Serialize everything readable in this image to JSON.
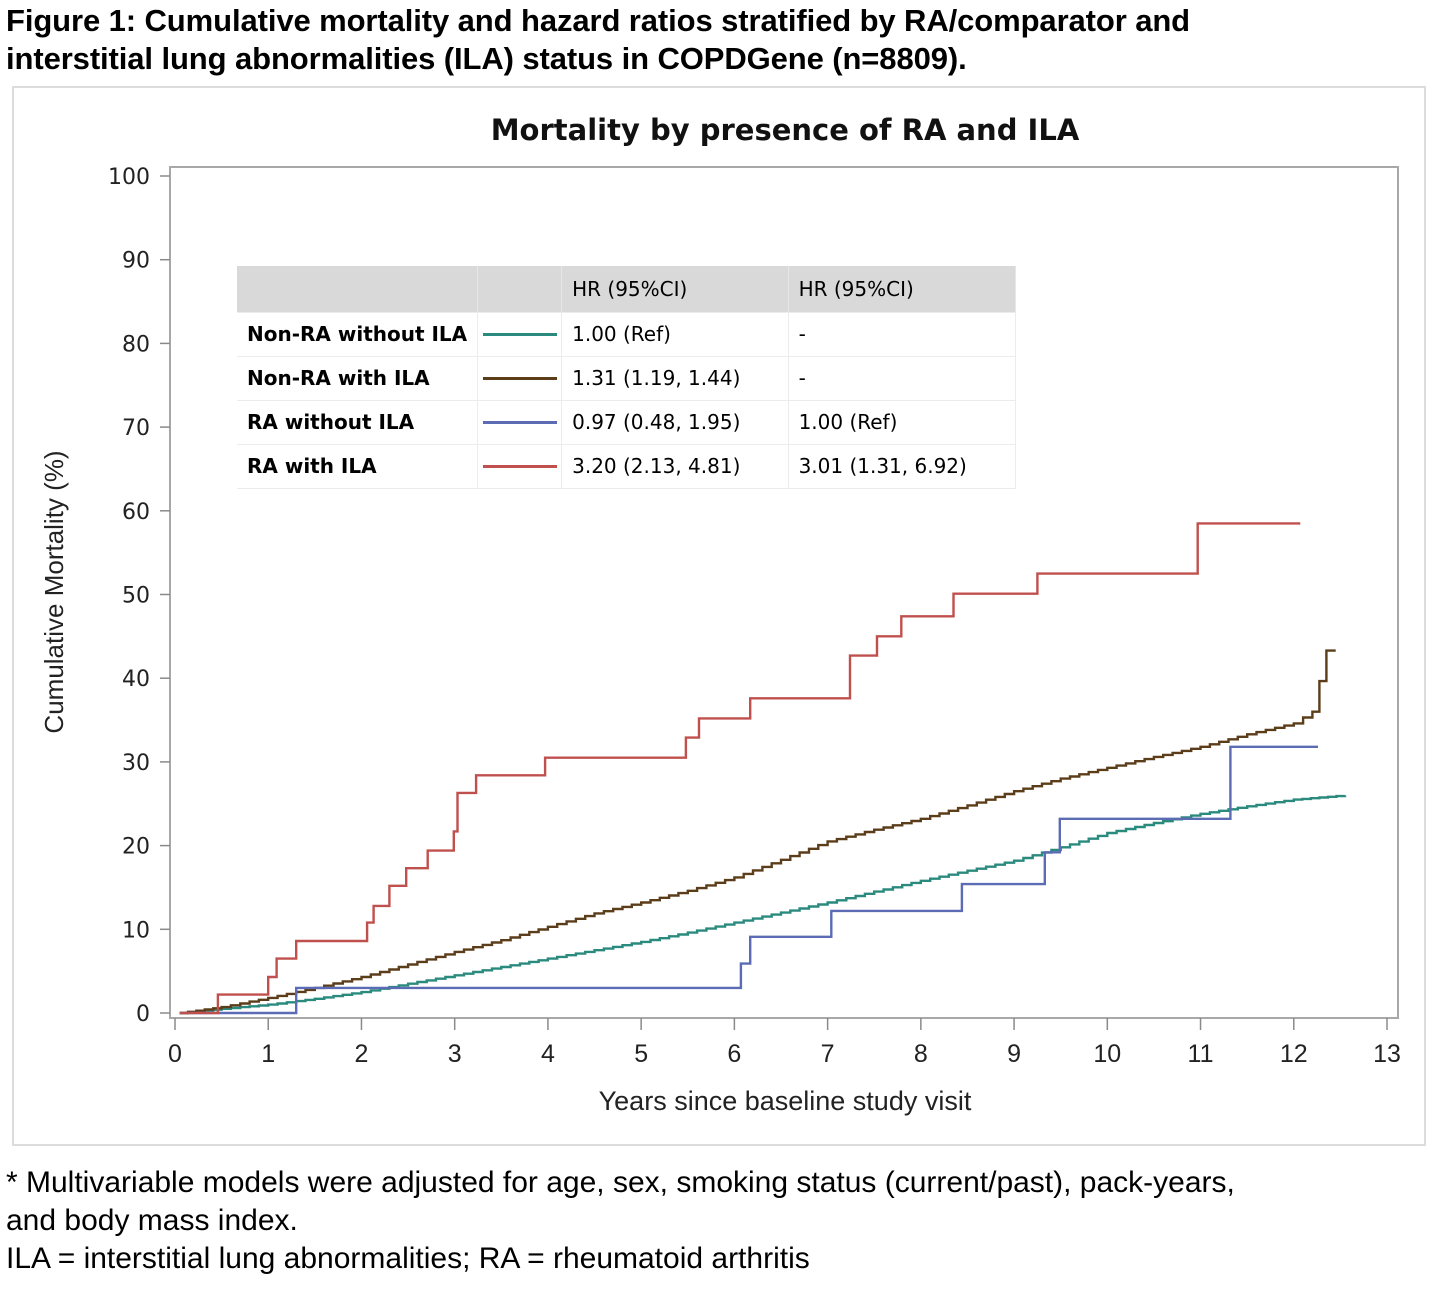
{
  "figure": {
    "title_line1": "Figure 1: Cumulative mortality and hazard ratios stratified by RA/comparator and",
    "title_line2": "interstitial lung abnormalities (ILA) status in COPDGene (n=8809)."
  },
  "footnote": {
    "line1": "* Multivariable models were adjusted for age, sex, smoking status (current/past), pack-years,",
    "line2": "and body mass index.",
    "line3": "ILA = interstitial lung abnormalities; RA = rheumatoid arthritis"
  },
  "legend_table": {
    "header": [
      "",
      "",
      "HR (95%CI)",
      "HR (95%CI)"
    ],
    "rows": [
      {
        "label": "Non-RA without ILA",
        "color": "#2a8a7e",
        "hr1": "1.00 (Ref)",
        "hr2": "-"
      },
      {
        "label": "Non-RA with ILA",
        "color": "#5c3d1a",
        "hr1": "1.31 (1.19, 1.44)",
        "hr2": "-"
      },
      {
        "label": "RA without ILA",
        "color": "#5b6cb4",
        "hr1": "0.97 (0.48, 1.95)",
        "hr2": "1.00 (Ref)"
      },
      {
        "label": "RA with ILA",
        "color": "#c0504d",
        "hr1": "3.20 (2.13, 4.81)",
        "hr2": "3.01 (1.31, 6.92)"
      }
    ]
  },
  "chart_data": {
    "type": "line",
    "step": true,
    "title": "Mortality by presence of RA and ILA",
    "xlabel": "Years since baseline study visit",
    "ylabel": "Cumulative Mortality (%)",
    "xlim": [
      0,
      13
    ],
    "ylim": [
      0,
      100
    ],
    "xticks": [
      0,
      1,
      2,
      3,
      4,
      5,
      6,
      7,
      8,
      9,
      10,
      11,
      12,
      13
    ],
    "yticks": [
      0,
      10,
      20,
      30,
      40,
      50,
      60,
      70,
      80,
      90,
      100
    ],
    "grid": false,
    "legend_placement": "top-left (inset table)",
    "series": [
      {
        "name": "Non-RA without ILA",
        "color": "#2a8a7e",
        "x": [
          0.05,
          0.5,
          1,
          1.5,
          2,
          2.5,
          3,
          3.5,
          4,
          4.5,
          5,
          5.5,
          6,
          6.5,
          7,
          7.5,
          8,
          8.5,
          9,
          9.5,
          10,
          10.5,
          11,
          11.5,
          12,
          12.55
        ],
        "y": [
          0,
          0.5,
          1.0,
          1.7,
          2.5,
          3.5,
          4.5,
          5.5,
          6.5,
          7.5,
          8.5,
          9.6,
          10.8,
          12.0,
          13.2,
          14.5,
          15.8,
          17.0,
          18.2,
          19.8,
          21.5,
          22.7,
          23.8,
          24.7,
          25.5,
          26.0
        ]
      },
      {
        "name": "Non-RA with ILA",
        "color": "#5c3d1a",
        "x": [
          0.05,
          0.5,
          1,
          1.5,
          2,
          2.5,
          3,
          3.5,
          4,
          4.5,
          5,
          5.5,
          6,
          6.5,
          7,
          7.5,
          8,
          8.5,
          9,
          9.5,
          10,
          10.5,
          11,
          11.5,
          12,
          12.2,
          12.35,
          12.45
        ],
        "y": [
          0,
          0.7,
          1.8,
          3.0,
          4.3,
          5.8,
          7.3,
          8.7,
          10.3,
          11.9,
          13.2,
          14.6,
          16.2,
          18.3,
          20.5,
          21.9,
          23.2,
          24.8,
          26.5,
          28.0,
          29.3,
          30.6,
          31.8,
          33.3,
          34.6,
          36.0,
          43.3,
          43.3
        ]
      },
      {
        "name": "RA without ILA",
        "color": "#5b6cb4",
        "x": [
          0.05,
          1.3,
          6.07,
          6.17,
          7.04,
          8.44,
          9.33,
          9.49,
          11.32,
          12.26
        ],
        "y": [
          0,
          3.0,
          5.9,
          9.1,
          12.2,
          15.4,
          19.2,
          23.2,
          31.8,
          31.8
        ]
      },
      {
        "name": "RA with ILA",
        "color": "#c0504d",
        "x": [
          0.05,
          0.46,
          1.0,
          1.09,
          1.3,
          2.06,
          2.13,
          2.3,
          2.48,
          2.71,
          2.99,
          3.03,
          3.23,
          3.97,
          5.48,
          5.62,
          6.17,
          7.24,
          7.53,
          7.79,
          8.35,
          9.25,
          10.97,
          12.07
        ],
        "y": [
          0,
          2.2,
          4.3,
          6.5,
          8.6,
          10.8,
          12.8,
          15.2,
          17.3,
          19.4,
          21.7,
          26.3,
          28.4,
          30.5,
          32.9,
          35.2,
          37.6,
          42.7,
          45.0,
          47.4,
          50.1,
          52.5,
          58.5,
          58.5
        ]
      }
    ]
  }
}
